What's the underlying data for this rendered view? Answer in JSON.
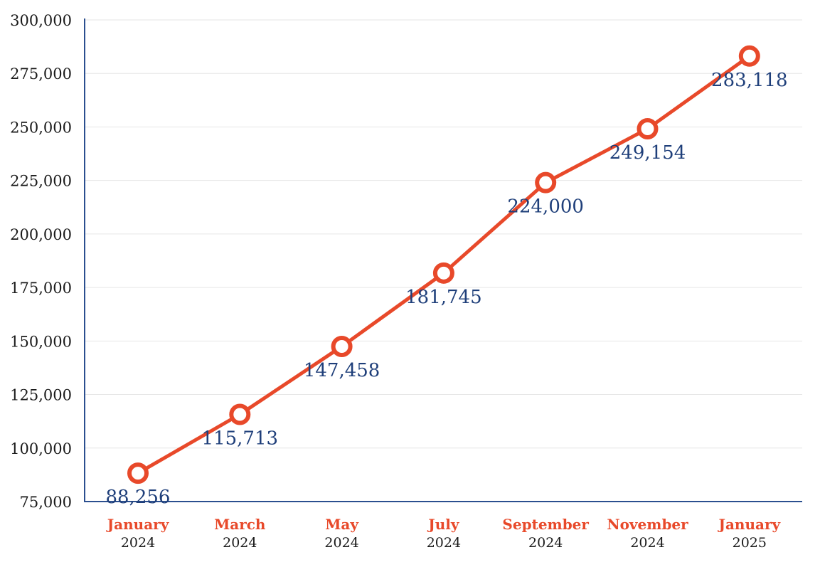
{
  "chart_data": {
    "type": "line",
    "title": "",
    "xlabel": "",
    "ylabel": "",
    "categories": [
      {
        "month": "January",
        "year": "2024"
      },
      {
        "month": "March",
        "year": "2024"
      },
      {
        "month": "May",
        "year": "2024"
      },
      {
        "month": "July",
        "year": "2024"
      },
      {
        "month": "September",
        "year": "2024"
      },
      {
        "month": "November",
        "year": "2024"
      },
      {
        "month": "January",
        "year": "2025"
      }
    ],
    "values": [
      88256,
      115713,
      147458,
      181745,
      224000,
      249154,
      283118
    ],
    "value_labels": [
      "88,256",
      "115,713",
      "147,458",
      "181,745",
      "224,000",
      "249,154",
      "283,118"
    ],
    "ylim": [
      75000,
      300000
    ],
    "yticks": [
      75000,
      100000,
      125000,
      150000,
      175000,
      200000,
      225000,
      250000,
      275000,
      300000
    ],
    "ytick_labels": [
      "75,000",
      "100,000",
      "125,000",
      "150,000",
      "175,000",
      "200,000",
      "225,000",
      "250,000",
      "275,000",
      "300,000"
    ],
    "grid": true,
    "legend": "none",
    "colors": {
      "line": "#e8492a",
      "marker_fill": "#ffffff",
      "data_label": "#1f3f7a",
      "axis": "#2b4f8f",
      "grid": "#e6e6e6",
      "month_label": "#e8492a",
      "year_label": "#1a1a1a"
    }
  }
}
